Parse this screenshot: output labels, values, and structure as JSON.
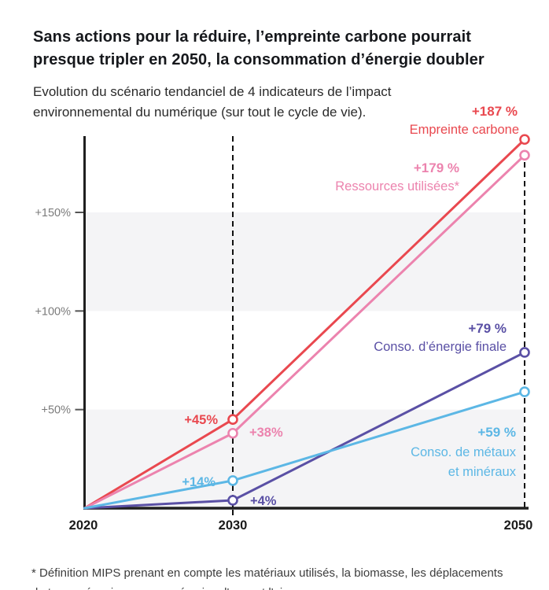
{
  "title": {
    "lines": [
      "Sans actions pour la réduire, l’empreinte carbone pourrait",
      "presque tripler en 2050, la consommation d’énergie doubler"
    ]
  },
  "subtitle": {
    "lines": [
      "Evolution du scénario tendanciel de 4 indicateurs de l’impact",
      "environnemental du numérique (sur tout le cycle de vie)."
    ]
  },
  "footnote": {
    "lines": [
      "* Définition MIPS prenant en compte les matériaux utilisés, la biomasse, les déplacements",
      "de terre mécaniques ou par érosion, l'eau, et l'air."
    ]
  },
  "chart_data": {
    "type": "line",
    "x": [
      2020,
      2030,
      2050
    ],
    "x_tick_labels": [
      "2020",
      "2030",
      "2050"
    ],
    "y_ticks": [
      {
        "value": 50,
        "label": "+50%"
      },
      {
        "value": 100,
        "label": "+100%"
      },
      {
        "value": 150,
        "label": "+150%"
      }
    ],
    "ylim": [
      0,
      188
    ],
    "grid_bands": [
      [
        0,
        50
      ],
      [
        100,
        150
      ]
    ],
    "band_color": "#f4f4f6",
    "axis_color": "#1f1f1f",
    "dashed_guide_years": [
      2030,
      2050
    ],
    "series": [
      {
        "name_lines": [
          "Empreinte carbone"
        ],
        "color": "#e9484f",
        "values": [
          0,
          45,
          187
        ],
        "mid_label": "+45%",
        "end_label": "+187 %"
      },
      {
        "name_lines": [
          "Ressources utilisées*"
        ],
        "color": "#ec83ae",
        "values": [
          0,
          38,
          179
        ],
        "mid_label": "+38%",
        "end_label": "+179 %"
      },
      {
        "name_lines": [
          "Conso. d’énergie finale"
        ],
        "color": "#5a50a5",
        "values": [
          0,
          4,
          79
        ],
        "mid_label": "+4%",
        "end_label": "+79 %"
      },
      {
        "name_lines": [
          "Conso. de métaux",
          "et minéraux"
        ],
        "color": "#5cb7e5",
        "values": [
          0,
          14,
          59
        ],
        "mid_label": "+14%",
        "end_label": "+59 %"
      }
    ]
  }
}
